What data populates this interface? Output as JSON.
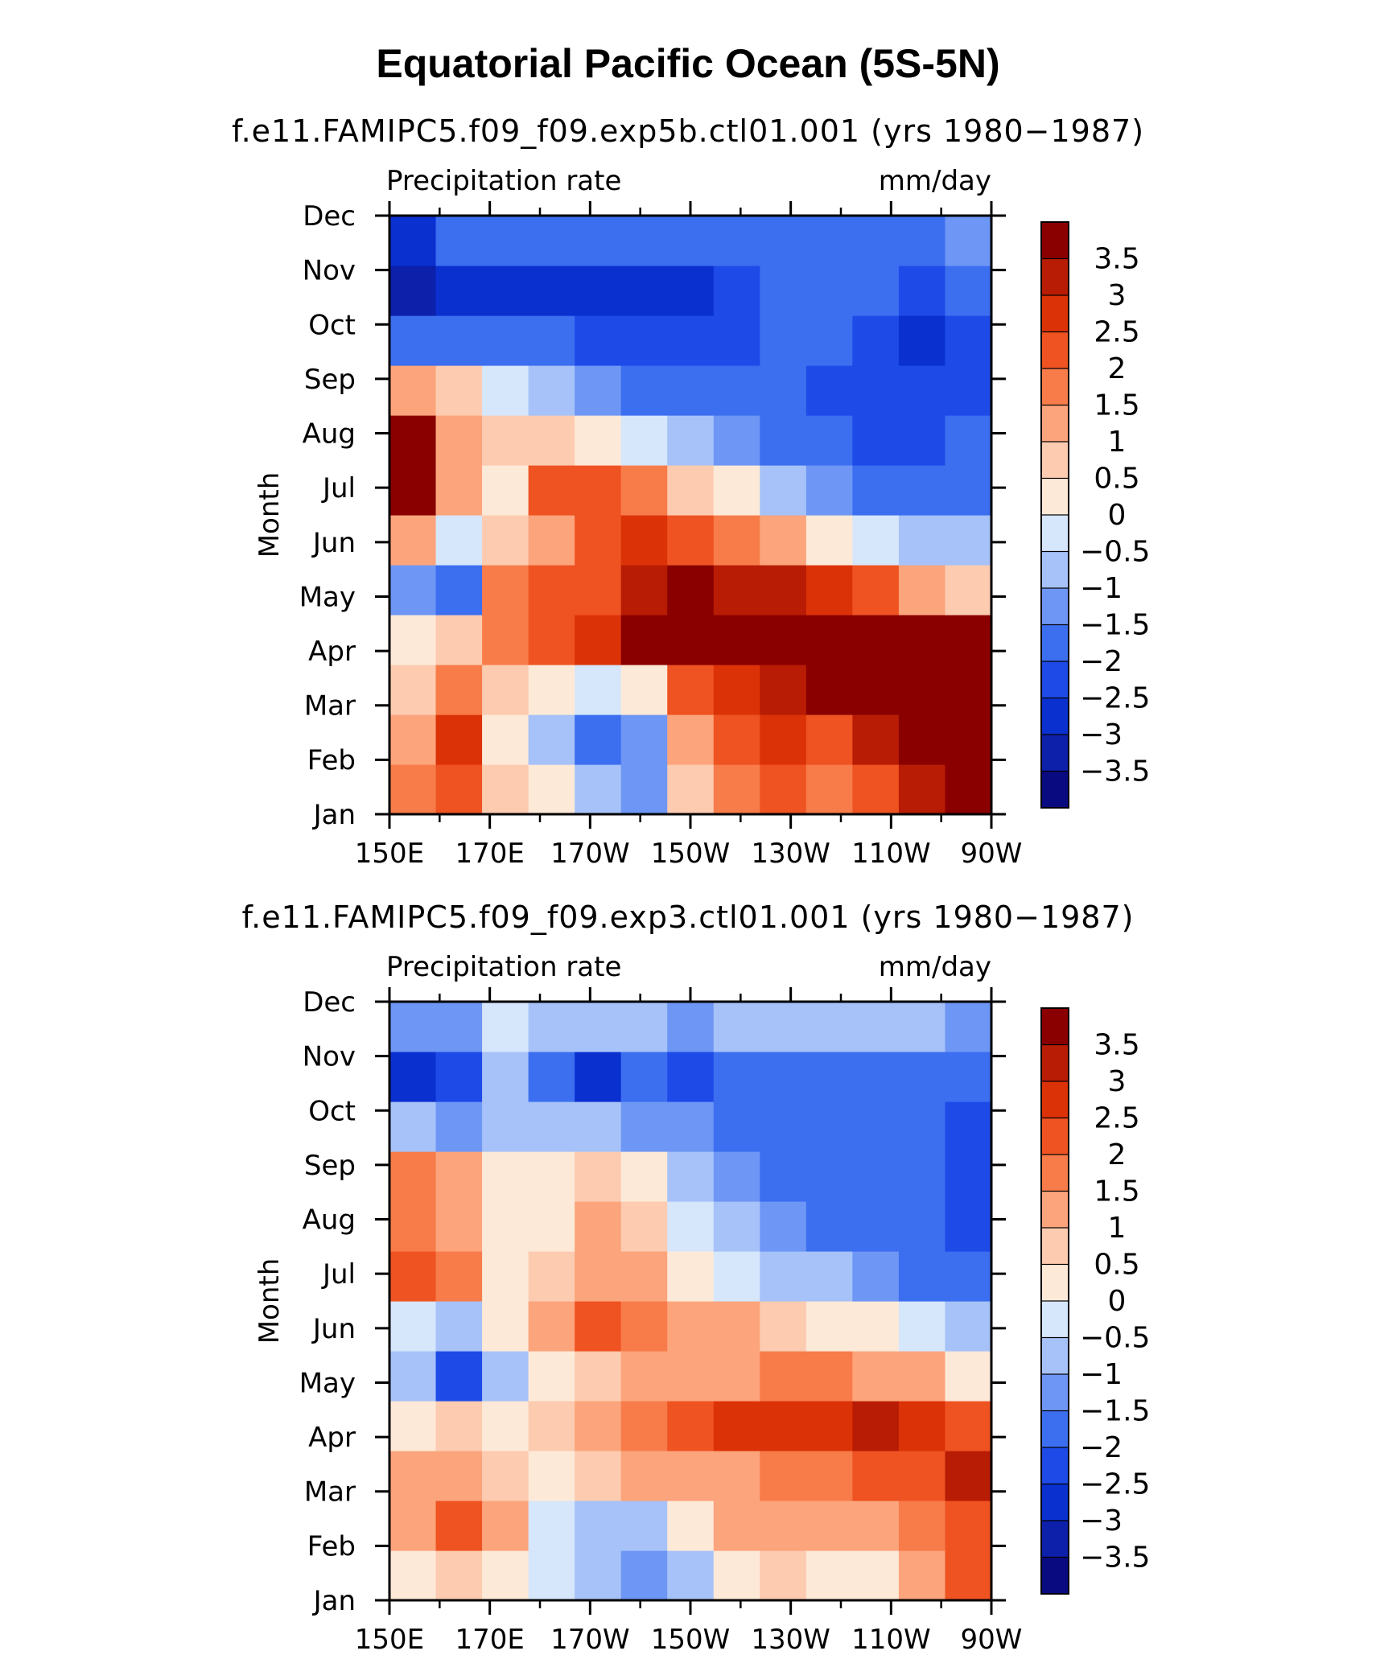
{
  "figure_title": "Equatorial Pacific Ocean (5S-5N)",
  "chart_data": [
    {
      "type": "heatmap",
      "subtitle": "f.e11.FAMIPC5.f09_f09.exp5b.ctl01.001 (yrs 1980−1987)",
      "field_label": "Precipitation rate",
      "units_label": "mm/day",
      "ylabel": "Month",
      "x_ticks": [
        "150E",
        "170E",
        "170W",
        "150W",
        "130W",
        "110W",
        "90W"
      ],
      "y_ticks": [
        "Jan",
        "Feb",
        "Mar",
        "Apr",
        "May",
        "Jun",
        "Jul",
        "Aug",
        "Sep",
        "Oct",
        "Nov",
        "Dec"
      ],
      "colorbar_ticks": [
        "3.5",
        "3",
        "2.5",
        "2",
        "1.5",
        "1",
        "0.5",
        "0",
        "−0.5",
        "−1",
        "−1.5",
        "−2",
        "−2.5",
        "−3",
        "−3.5"
      ],
      "levels": [
        -3.5,
        -3,
        -2.5,
        -2,
        -1.5,
        -1,
        -0.5,
        0,
        0.5,
        1,
        1.5,
        2,
        2.5,
        3,
        3.5
      ],
      "grid_x": [
        "150E",
        "160E",
        "170E",
        "180",
        "170W",
        "160W",
        "150W",
        "140W",
        "130W",
        "120W",
        "110W",
        "100W",
        "90W"
      ],
      "grid_y": [
        "Jan",
        "Feb",
        "Mar",
        "Apr",
        "May",
        "Jun",
        "Jul",
        "Aug",
        "Sep",
        "Oct",
        "Nov",
        "Dec"
      ],
      "values": [
        [
          1.8,
          2.2,
          0.6,
          0.2,
          -1.0,
          -1.3,
          0.8,
          1.6,
          2.0,
          1.6,
          2.2,
          3.0,
          3.6
        ],
        [
          1.2,
          2.6,
          0.4,
          -0.6,
          -1.8,
          -1.2,
          1.2,
          2.0,
          2.8,
          2.0,
          3.0,
          3.6,
          3.8
        ],
        [
          0.5,
          1.8,
          0.8,
          0.3,
          -0.4,
          0.4,
          2.0,
          2.6,
          3.0,
          3.6,
          3.8,
          3.8,
          3.8
        ],
        [
          0.1,
          0.8,
          1.8,
          2.4,
          2.8,
          3.8,
          3.8,
          3.8,
          3.8,
          3.8,
          3.8,
          3.8,
          3.6
        ],
        [
          -1.3,
          -1.6,
          1.6,
          2.4,
          2.2,
          3.0,
          3.8,
          3.2,
          3.0,
          2.6,
          2.0,
          1.4,
          0.8
        ],
        [
          1.2,
          -0.4,
          0.8,
          1.4,
          2.4,
          2.8,
          2.2,
          1.8,
          1.0,
          0.4,
          -0.4,
          -0.8,
          -1.0
        ],
        [
          3.6,
          1.2,
          0.4,
          2.0,
          2.4,
          1.8,
          0.8,
          0.2,
          -0.6,
          -1.2,
          -1.6,
          -1.8,
          -1.6
        ],
        [
          3.6,
          1.4,
          0.6,
          0.8,
          0.4,
          -0.2,
          -0.6,
          -1.4,
          -1.8,
          -2.0,
          -2.2,
          -2.2,
          -2.0
        ],
        [
          1.2,
          0.6,
          -0.2,
          -0.8,
          -1.2,
          -1.6,
          -1.8,
          -2.0,
          -2.0,
          -2.2,
          -2.2,
          -2.4,
          -2.2
        ],
        [
          -1.6,
          -1.8,
          -2.0,
          -2.0,
          -2.2,
          -2.2,
          -2.4,
          -2.2,
          -2.0,
          -2.0,
          -2.2,
          -2.6,
          -2.4
        ],
        [
          -3.4,
          -2.6,
          -2.6,
          -2.8,
          -2.6,
          -2.8,
          -3.0,
          -2.4,
          -2.0,
          -2.0,
          -2.0,
          -2.2,
          -2.0
        ],
        [
          -2.6,
          -1.6,
          -1.8,
          -1.8,
          -1.6,
          -1.6,
          -1.8,
          -1.8,
          -1.6,
          -1.6,
          -1.6,
          -1.6,
          -1.4
        ]
      ]
    },
    {
      "type": "heatmap",
      "subtitle": "f.e11.FAMIPC5.f09_f09.exp3.ctl01.001 (yrs 1980−1987)",
      "field_label": "Precipitation rate",
      "units_label": "mm/day",
      "ylabel": "Month",
      "x_ticks": [
        "150E",
        "170E",
        "170W",
        "150W",
        "130W",
        "110W",
        "90W"
      ],
      "y_ticks": [
        "Jan",
        "Feb",
        "Mar",
        "Apr",
        "May",
        "Jun",
        "Jul",
        "Aug",
        "Sep",
        "Oct",
        "Nov",
        "Dec"
      ],
      "colorbar_ticks": [
        "3.5",
        "3",
        "2.5",
        "2",
        "1.5",
        "1",
        "0.5",
        "0",
        "−0.5",
        "−1",
        "−1.5",
        "−2",
        "−2.5",
        "−3",
        "−3.5"
      ],
      "levels": [
        -3.5,
        -3,
        -2.5,
        -2,
        -1.5,
        -1,
        -0.5,
        0,
        0.5,
        1,
        1.5,
        2,
        2.5,
        3,
        3.5
      ],
      "grid_x": [
        "150E",
        "160E",
        "170E",
        "180",
        "170W",
        "160W",
        "150W",
        "140W",
        "130W",
        "120W",
        "110W",
        "100W",
        "90W"
      ],
      "grid_y": [
        "Jan",
        "Feb",
        "Mar",
        "Apr",
        "May",
        "Jun",
        "Jul",
        "Aug",
        "Sep",
        "Oct",
        "Nov",
        "Dec"
      ],
      "values": [
        [
          0.4,
          0.6,
          0.2,
          -0.4,
          -1.0,
          -1.4,
          -0.6,
          0.4,
          0.8,
          0.4,
          0.2,
          1.0,
          2.0
        ],
        [
          1.2,
          2.0,
          1.0,
          -0.2,
          -0.6,
          -0.6,
          0.4,
          1.0,
          1.2,
          1.4,
          1.4,
          1.8,
          2.4
        ],
        [
          1.2,
          1.2,
          0.6,
          0.4,
          0.6,
          1.0,
          1.2,
          1.4,
          1.6,
          1.8,
          2.0,
          2.2,
          3.0
        ],
        [
          0.4,
          0.6,
          0.4,
          0.8,
          1.4,
          1.8,
          2.2,
          2.6,
          2.8,
          2.8,
          3.0,
          2.6,
          2.0
        ],
        [
          -0.8,
          -2.2,
          -0.6,
          0.4,
          0.8,
          1.4,
          1.2,
          1.4,
          1.6,
          1.6,
          1.2,
          1.0,
          0.4
        ],
        [
          -0.4,
          -0.6,
          0.2,
          1.0,
          2.0,
          1.6,
          1.2,
          1.0,
          0.8,
          0.4,
          0.0,
          -0.4,
          -0.8
        ],
        [
          2.0,
          1.6,
          0.4,
          0.6,
          1.4,
          1.0,
          0.4,
          -0.2,
          -0.6,
          -1.0,
          -1.2,
          -1.6,
          -2.0
        ],
        [
          1.8,
          1.4,
          0.4,
          0.4,
          1.2,
          0.6,
          -0.2,
          -0.8,
          -1.2,
          -1.6,
          -1.8,
          -2.0,
          -2.2
        ],
        [
          1.6,
          1.4,
          0.2,
          0.2,
          0.6,
          0.0,
          -0.6,
          -1.2,
          -1.6,
          -1.8,
          -2.0,
          -2.0,
          -2.2
        ],
        [
          -0.8,
          -1.2,
          -0.6,
          -0.8,
          -1.0,
          -1.2,
          -1.4,
          -1.6,
          -1.8,
          -1.8,
          -1.8,
          -1.8,
          -2.2
        ],
        [
          -2.6,
          -2.2,
          -1.0,
          -1.8,
          -2.6,
          -1.8,
          -2.4,
          -1.6,
          -1.6,
          -1.6,
          -1.6,
          -1.6,
          -1.8
        ],
        [
          -1.4,
          -1.2,
          -0.4,
          -0.8,
          -1.0,
          -0.8,
          -1.2,
          -1.0,
          -1.0,
          -0.8,
          -0.8,
          -0.6,
          -1.2
        ]
      ]
    }
  ],
  "colors": {
    "levels": [
      "#0a0a80",
      "#0c20aa",
      "#0a30d0",
      "#1e4ae8",
      "#3c6ef0",
      "#6e96f4",
      "#a6c2f8",
      "#d6e6fb",
      "#fde9d8",
      "#fccbb0",
      "#fca47c",
      "#f77c4a",
      "#ef5322",
      "#dc3208",
      "#b81c04",
      "#8a0000"
    ]
  }
}
